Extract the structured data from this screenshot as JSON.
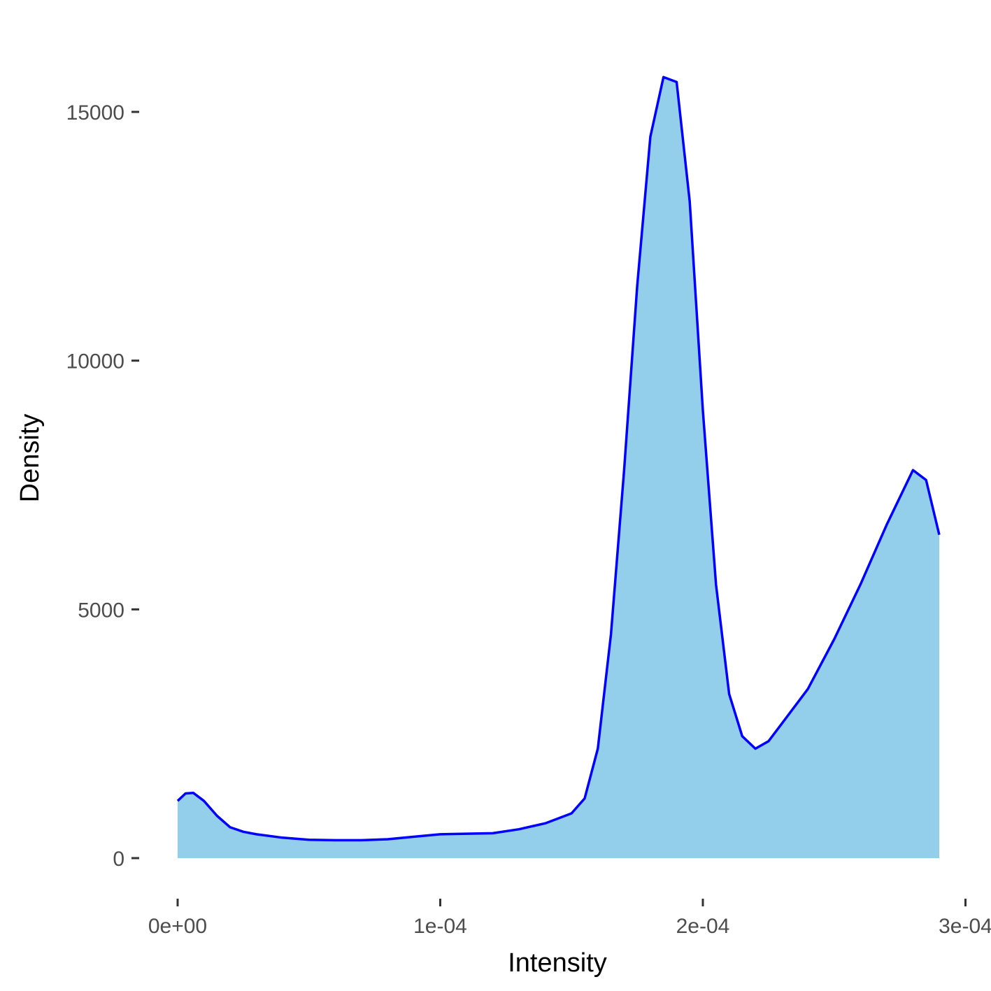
{
  "chart_data": {
    "type": "area",
    "title": "",
    "xlabel": "Intensity",
    "ylabel": "Density",
    "xlim": [
      -1.5e-06,
      0.0003
    ],
    "ylim": [
      -600,
      16400
    ],
    "x_ticks": [
      0,
      0.0001,
      0.0002,
      0.0003
    ],
    "x_tick_labels": [
      "0e+00",
      "1e-04",
      "2e-04",
      "3e-04"
    ],
    "y_ticks": [
      0,
      5000,
      10000,
      15000
    ],
    "y_tick_labels": [
      "0",
      "5000",
      "10000",
      "15000"
    ],
    "grid": false,
    "legend": "none",
    "colors": {
      "fill": "#93CFEB",
      "line": "#0000FF"
    },
    "series": [
      {
        "x": [
          0,
          3e-06,
          6e-06,
          1e-05,
          1.5e-05,
          2e-05,
          2.5e-05,
          3e-05,
          4e-05,
          5e-05,
          6e-05,
          7e-05,
          8e-05,
          9e-05,
          0.0001,
          0.00011,
          0.00012,
          0.00013,
          0.00014,
          0.00015,
          0.000155,
          0.00016,
          0.000165,
          0.00017,
          0.000175,
          0.00018,
          0.000185,
          0.00019,
          0.000195,
          0.0002,
          0.000205,
          0.00021,
          0.000215,
          0.00022,
          0.000225,
          0.00023,
          0.00024,
          0.00025,
          0.00026,
          0.00027,
          0.00028,
          0.000285,
          0.00029
        ],
        "y": [
          1150,
          1300,
          1310,
          1150,
          850,
          620,
          530,
          480,
          410,
          370,
          360,
          360,
          380,
          430,
          480,
          490,
          500,
          580,
          700,
          900,
          1200,
          2200,
          4500,
          7800,
          11500,
          14500,
          15700,
          15600,
          13200,
          9000,
          5500,
          3300,
          2450,
          2200,
          2350,
          2700,
          3400,
          4400,
          5500,
          6700,
          7800,
          7600,
          6500
        ]
      }
    ]
  }
}
